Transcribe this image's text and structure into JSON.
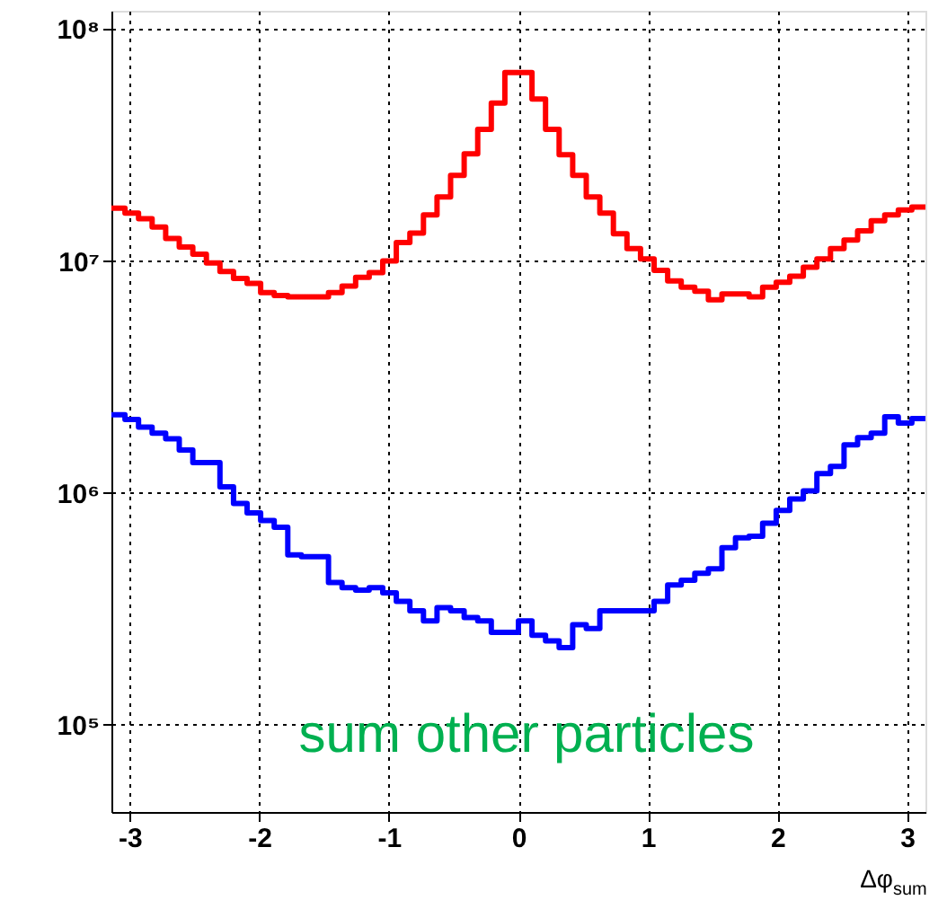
{
  "chart_data": {
    "type": "histogram",
    "xlabel": "Δφ$_{sum}$",
    "annotations": [
      "sum other particles"
    ],
    "bins": [
      -3.1416,
      -3.0369,
      -2.9322,
      -2.8274,
      -2.7227,
      -2.618,
      -2.5133,
      -2.4086,
      -2.3038,
      -2.1991,
      -2.0944,
      -1.9897,
      -1.885,
      -1.7802,
      -1.6755,
      -1.5708,
      -1.4661,
      -1.3614,
      -1.2566,
      -1.1519,
      -1.0472,
      -0.9425,
      -0.8378,
      -0.733,
      -0.6283,
      -0.5236,
      -0.4189,
      -0.3142,
      -0.2094,
      -0.1047,
      0,
      0.1047,
      0.2094,
      0.3142,
      0.4189,
      0.5236,
      0.6283,
      0.733,
      0.8378,
      0.9425,
      1.0472,
      1.1519,
      1.2566,
      1.3614,
      1.4661,
      1.5708,
      1.6755,
      1.7802,
      1.885,
      1.9897,
      2.0944,
      2.1991,
      2.3038,
      2.4086,
      2.5133,
      2.618,
      2.7227,
      2.8274,
      2.9322,
      3.0369,
      3.1416
    ],
    "series": [
      {
        "color": "#ff0000",
        "values": [
          16900000.0,
          16100000.0,
          15200000.0,
          14000000.0,
          12500000.0,
          11500000.0,
          10700000.0,
          9800000.0,
          9000000.0,
          8400000.0,
          8000000.0,
          7300000.0,
          7100000.0,
          7000000.0,
          7000000.0,
          7000000.0,
          7300000.0,
          7800000.0,
          8500000.0,
          8900000.0,
          10000000.0,
          12000000.0,
          13200000.0,
          15800000.0,
          18900000.0,
          23400000.0,
          29000000.0,
          37000000.0,
          48000000.0,
          65000000.0,
          65000000.0,
          50000000.0,
          37000000.0,
          28700000.0,
          23400000.0,
          18900000.0,
          16100000.0,
          13100000.0,
          11300000.0,
          10200000.0,
          9100000.0,
          8200000.0,
          7700000.0,
          7400000.0,
          6800000.0,
          7200000.0,
          7200000.0,
          7000000.0,
          7700000.0,
          8100000.0,
          8600000.0,
          9400000.0,
          10200000.0,
          11300000.0,
          12300000.0,
          13500000.0,
          14900000.0,
          15800000.0,
          16600000.0,
          17100000.0
        ]
      },
      {
        "color": "#0000ff",
        "values": [
          2170000.0,
          2070000.0,
          1920000.0,
          1810000.0,
          1710000.0,
          1530000.0,
          1350000.0,
          1350000.0,
          1060000.0,
          900000.0,
          820000.0,
          760000.0,
          710000.0,
          540000.0,
          530000.0,
          530000.0,
          410000.0,
          390000.0,
          380000.0,
          390000.0,
          370000.0,
          340000.0,
          310000.0,
          280000.0,
          320000.0,
          310000.0,
          290000.0,
          280000.0,
          250000.0,
          250000.0,
          280000.0,
          243000.0,
          230000.0,
          215000.0,
          270000.0,
          260000.0,
          310000.0,
          310000.0,
          310000.0,
          310000.0,
          340000.0,
          400000.0,
          420000.0,
          450000.0,
          470000.0,
          580000.0,
          640000.0,
          650000.0,
          740000.0,
          840000.0,
          940000.0,
          1020000.0,
          1210000.0,
          1300000.0,
          1610000.0,
          1730000.0,
          1810000.0,
          2130000.0,
          2000000.0,
          2090000.0
        ]
      }
    ],
    "xlim": [
      -3.1416,
      3.1416
    ],
    "xticks": [
      -3,
      -2,
      -1,
      0,
      1,
      2,
      3
    ],
    "ylim": [
      42000,
      120000000
    ],
    "yticks": [
      {
        "value": 100000,
        "label": "10⁵"
      },
      {
        "value": 1000000,
        "label": "10⁶"
      },
      {
        "value": 10000000,
        "label": "10⁷"
      },
      {
        "value": 100000000,
        "label": "10⁸"
      }
    ],
    "log": true,
    "grid": true,
    "legend": false
  }
}
